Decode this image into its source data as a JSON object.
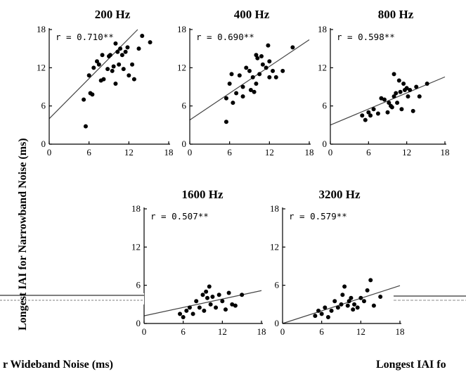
{
  "ylabel": "Longest IAI for Narrowband Noise (ms)",
  "xlabel_left": "r Wideband Noise (ms)",
  "xlabel_right": "Longest IAI fo",
  "chart_data": [
    {
      "type": "scatter",
      "title": "200 Hz",
      "annotation": "r = 0.710**",
      "xlim": [
        0,
        18
      ],
      "ylim": [
        0,
        18
      ],
      "xticks": [
        "0",
        "6",
        "12",
        "18"
      ],
      "yticks": [
        "0",
        "6",
        "12",
        "18"
      ],
      "regression": {
        "intercept": 4.0,
        "slope": 1.05
      },
      "points": [
        [
          5.2,
          7.0
        ],
        [
          5.5,
          2.8
        ],
        [
          6.0,
          10.8
        ],
        [
          6.2,
          8.0
        ],
        [
          6.5,
          7.8
        ],
        [
          6.7,
          12.0
        ],
        [
          7.2,
          13.0
        ],
        [
          7.5,
          12.5
        ],
        [
          7.8,
          10.0
        ],
        [
          8.0,
          14.0
        ],
        [
          8.2,
          10.2
        ],
        [
          8.8,
          11.8
        ],
        [
          9.0,
          13.8
        ],
        [
          9.2,
          14.0
        ],
        [
          9.5,
          11.5
        ],
        [
          9.7,
          12.2
        ],
        [
          10.0,
          15.8
        ],
        [
          10.0,
          9.5
        ],
        [
          10.3,
          14.5
        ],
        [
          10.5,
          12.5
        ],
        [
          10.7,
          15.0
        ],
        [
          11.0,
          14.0
        ],
        [
          11.2,
          11.8
        ],
        [
          11.5,
          14.5
        ],
        [
          11.8,
          15.2
        ],
        [
          12.0,
          10.8
        ],
        [
          12.5,
          12.5
        ],
        [
          12.8,
          10.2
        ],
        [
          13.5,
          15.0
        ],
        [
          14.0,
          17.0
        ],
        [
          15.2,
          16.0
        ]
      ]
    },
    {
      "type": "scatter",
      "title": "400 Hz",
      "annotation": "r = 0.690**",
      "xlim": [
        0,
        18
      ],
      "ylim": [
        0,
        18
      ],
      "xticks": [
        "0",
        "6",
        "12",
        "18"
      ],
      "yticks": [
        "0",
        "6",
        "12",
        "18"
      ],
      "regression": {
        "intercept": 3.8,
        "slope": 0.7
      },
      "points": [
        [
          5.5,
          3.5
        ],
        [
          5.5,
          7.2
        ],
        [
          6.0,
          9.5
        ],
        [
          6.3,
          11.0
        ],
        [
          6.5,
          6.5
        ],
        [
          7.0,
          8.0
        ],
        [
          7.5,
          10.8
        ],
        [
          8.0,
          9.0
        ],
        [
          8.0,
          7.5
        ],
        [
          8.5,
          12.0
        ],
        [
          9.0,
          11.5
        ],
        [
          9.2,
          8.5
        ],
        [
          9.5,
          10.5
        ],
        [
          9.7,
          8.2
        ],
        [
          10.0,
          14.0
        ],
        [
          10.0,
          9.5
        ],
        [
          10.2,
          13.5
        ],
        [
          10.5,
          11.0
        ],
        [
          10.8,
          13.8
        ],
        [
          11.0,
          12.5
        ],
        [
          11.5,
          12.0
        ],
        [
          11.8,
          15.5
        ],
        [
          12.0,
          10.5
        ],
        [
          12.0,
          13.0
        ],
        [
          12.5,
          11.5
        ],
        [
          13.0,
          10.5
        ],
        [
          14.0,
          11.5
        ],
        [
          15.5,
          15.2
        ]
      ]
    },
    {
      "type": "scatter",
      "title": "800 Hz",
      "annotation": "r = 0.598**",
      "xlim": [
        0,
        18
      ],
      "ylim": [
        0,
        18
      ],
      "xticks": [
        "0",
        "6",
        "12",
        "18"
      ],
      "yticks": [
        "0",
        "6",
        "12",
        "18"
      ],
      "regression": {
        "intercept": 3.0,
        "slope": 0.42
      },
      "points": [
        [
          5.0,
          4.5
        ],
        [
          5.5,
          3.8
        ],
        [
          6.0,
          5.0
        ],
        [
          6.3,
          4.5
        ],
        [
          6.8,
          5.5
        ],
        [
          7.5,
          4.8
        ],
        [
          8.0,
          7.2
        ],
        [
          8.5,
          7.0
        ],
        [
          9.0,
          5.0
        ],
        [
          9.2,
          6.5
        ],
        [
          9.5,
          6.0
        ],
        [
          9.7,
          5.8
        ],
        [
          10.0,
          11.0
        ],
        [
          10.0,
          7.5
        ],
        [
          10.3,
          8.0
        ],
        [
          10.5,
          6.5
        ],
        [
          10.8,
          10.0
        ],
        [
          11.0,
          8.2
        ],
        [
          11.2,
          5.5
        ],
        [
          11.5,
          9.5
        ],
        [
          11.7,
          8.5
        ],
        [
          12.0,
          8.8
        ],
        [
          12.2,
          7.5
        ],
        [
          12.5,
          8.5
        ],
        [
          13.0,
          5.2
        ],
        [
          13.5,
          9.0
        ],
        [
          14.0,
          7.5
        ],
        [
          15.2,
          9.5
        ]
      ]
    },
    {
      "type": "scatter",
      "title": "1600 Hz",
      "annotation": "r = 0.507**",
      "xlim": [
        0,
        18
      ],
      "ylim": [
        0,
        18
      ],
      "xticks": [
        "0",
        "6",
        "12",
        "18"
      ],
      "yticks": [
        "0",
        "6",
        "12",
        "18"
      ],
      "regression": {
        "intercept": 1.2,
        "slope": 0.22
      },
      "points": [
        [
          5.5,
          1.5
        ],
        [
          6.0,
          1.0
        ],
        [
          6.5,
          2.0
        ],
        [
          7.0,
          2.5
        ],
        [
          7.5,
          1.5
        ],
        [
          8.0,
          3.5
        ],
        [
          8.5,
          2.5
        ],
        [
          9.0,
          4.5
        ],
        [
          9.2,
          2.0
        ],
        [
          9.5,
          5.0
        ],
        [
          9.7,
          4.0
        ],
        [
          10.0,
          5.8
        ],
        [
          10.2,
          3.0
        ],
        [
          10.5,
          4.2
        ],
        [
          11.0,
          2.5
        ],
        [
          11.5,
          4.5
        ],
        [
          12.0,
          3.5
        ],
        [
          12.5,
          2.2
        ],
        [
          13.0,
          4.8
        ],
        [
          13.5,
          3.0
        ],
        [
          14.0,
          2.8
        ],
        [
          15.0,
          4.5
        ]
      ]
    },
    {
      "type": "scatter",
      "title": "3200 Hz",
      "annotation": "r = 0.579**",
      "xlim": [
        0,
        18
      ],
      "ylim": [
        0,
        18
      ],
      "xticks": [
        "0",
        "6",
        "12",
        "18"
      ],
      "yticks": [
        "0",
        "6",
        "12",
        "18"
      ],
      "regression": {
        "intercept": 0.0,
        "slope": 0.33
      },
      "points": [
        [
          5.0,
          1.2
        ],
        [
          5.5,
          2.0
        ],
        [
          6.0,
          1.5
        ],
        [
          6.5,
          2.5
        ],
        [
          7.0,
          1.0
        ],
        [
          7.5,
          2.0
        ],
        [
          8.0,
          3.5
        ],
        [
          8.5,
          2.5
        ],
        [
          9.0,
          3.0
        ],
        [
          9.2,
          4.5
        ],
        [
          9.5,
          5.8
        ],
        [
          10.0,
          2.8
        ],
        [
          10.2,
          3.5
        ],
        [
          10.5,
          4.0
        ],
        [
          10.8,
          2.2
        ],
        [
          11.0,
          3.0
        ],
        [
          11.5,
          2.5
        ],
        [
          12.0,
          4.0
        ],
        [
          12.5,
          3.5
        ],
        [
          13.0,
          5.2
        ],
        [
          13.5,
          6.8
        ],
        [
          14.0,
          2.8
        ],
        [
          15.0,
          4.2
        ]
      ]
    }
  ]
}
